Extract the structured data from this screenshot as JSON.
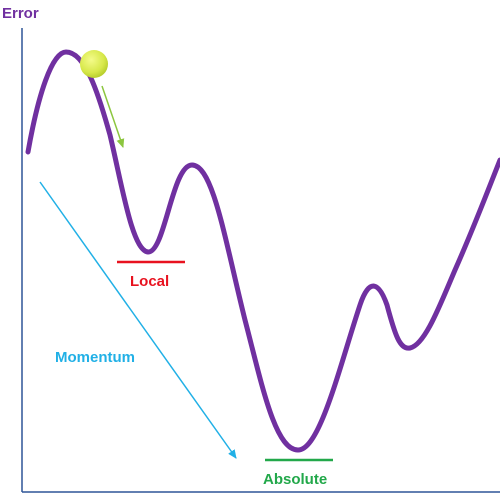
{
  "labels": {
    "y_axis": "Error",
    "local": "Local",
    "absolute": "Absolute",
    "momentum": "Momentum"
  },
  "colors": {
    "curve": "#7030a0",
    "axis": "#2e5597",
    "axis_label": "#7030a0",
    "local": "#e8121f",
    "absolute": "#22a84a",
    "momentum": "#21b0e6",
    "ball_arrow": "#8cc63f",
    "ball": "#d7e84a"
  },
  "icons": {
    "ball": "tennis-ball-icon"
  }
}
